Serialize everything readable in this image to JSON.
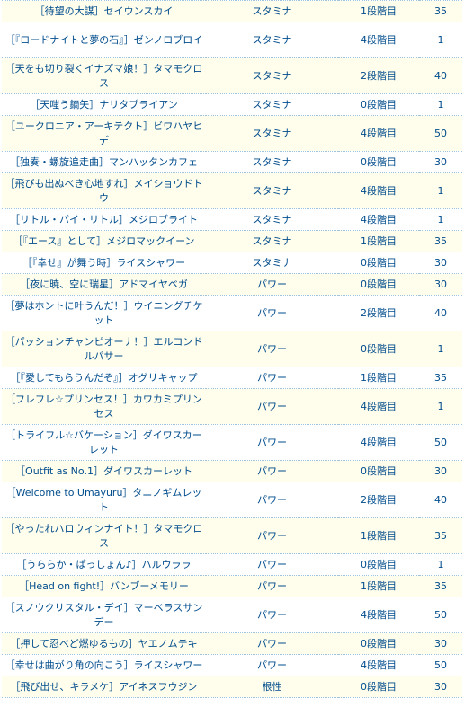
{
  "table": {
    "rows": [
      {
        "card": "［待望の大謀］セイウンスカイ",
        "type": "スタミナ",
        "stage": "1段階目",
        "value": "35"
      },
      {
        "card": "［『ロードナイトと夢の石』］ゼンノロブロイ",
        "type": "スタミナ",
        "stage": "4段階目",
        "value": "1"
      },
      {
        "card": "［天をも切り裂くイナズマ娘！］タマモクロス",
        "type": "スタミナ",
        "stage": "2段階目",
        "value": "40"
      },
      {
        "card": "［天嗤う鏑矢］ナリタブライアン",
        "type": "スタミナ",
        "stage": "0段階目",
        "value": "1"
      },
      {
        "card": "［ユークロニア・アーキテクト］ビワハヤヒデ",
        "type": "スタミナ",
        "stage": "4段階目",
        "value": "50"
      },
      {
        "card": "［独奏・螺旋追走曲］マンハッタンカフェ",
        "type": "スタミナ",
        "stage": "0段階目",
        "value": "30"
      },
      {
        "card": "［飛びも出ぬべき心地すれ］メイショウドトウ",
        "type": "スタミナ",
        "stage": "4段階目",
        "value": "1"
      },
      {
        "card": "［リトル・バイ・リトル］メジロブライト",
        "type": "スタミナ",
        "stage": "4段階目",
        "value": "1"
      },
      {
        "card": "［『エース』として］メジロマックイーン",
        "type": "スタミナ",
        "stage": "1段階目",
        "value": "35"
      },
      {
        "card": "［『幸せ』が舞う時］ライスシャワー",
        "type": "スタミナ",
        "stage": "0段階目",
        "value": "30"
      },
      {
        "card": "［夜に暁、空に瑞星］アドマイヤベガ",
        "type": "パワー",
        "stage": "0段階目",
        "value": "30"
      },
      {
        "card": "［夢はホントに叶うんだ！］ウイニングチケット",
        "type": "パワー",
        "stage": "2段階目",
        "value": "40"
      },
      {
        "card": "［パッションチャンピオーナ！］エルコンドルパサー",
        "type": "パワー",
        "stage": "0段階目",
        "value": "1"
      },
      {
        "card": "［『愛してもらうんだぞ』］オグリキャップ",
        "type": "パワー",
        "stage": "1段階目",
        "value": "35"
      },
      {
        "card": "［フレフレ☆プリンセス！］カワカミプリンセス",
        "type": "パワー",
        "stage": "4段階目",
        "value": "1"
      },
      {
        "card": "［トライフル☆バケーション］ダイワスカーレット",
        "type": "パワー",
        "stage": "4段階目",
        "value": "50"
      },
      {
        "card": "［Outfit as No.1］ダイワスカーレット",
        "type": "パワー",
        "stage": "0段階目",
        "value": "30"
      },
      {
        "card": "［Welcome to Umayuru］タニノギムレット",
        "type": "パワー",
        "stage": "2段階目",
        "value": "40"
      },
      {
        "card": "［やったれハロウィンナイト！］タマモクロス",
        "type": "パワー",
        "stage": "1段階目",
        "value": "35"
      },
      {
        "card": "［うららか・ぱっしょん♪］ハルウララ",
        "type": "パワー",
        "stage": "0段階目",
        "value": "1"
      },
      {
        "card": "［Head on fight!］バンブーメモリー",
        "type": "パワー",
        "stage": "1段階目",
        "value": "35"
      },
      {
        "card": "［スノウクリスタル・デイ］マーベラスサンデー",
        "type": "パワー",
        "stage": "4段階目",
        "value": "50"
      },
      {
        "card": "［押して忍べど燃ゆるもの］ヤエノムテキ",
        "type": "パワー",
        "stage": "0段階目",
        "value": "30"
      },
      {
        "card": "［幸せは曲がり角の向こう］ライスシャワー",
        "type": "パワー",
        "stage": "4段階目",
        "value": "50"
      },
      {
        "card": "［飛び出せ、キラメケ］アイネスフウジン",
        "type": "根性",
        "stage": "0段階目",
        "value": "30"
      }
    ]
  }
}
